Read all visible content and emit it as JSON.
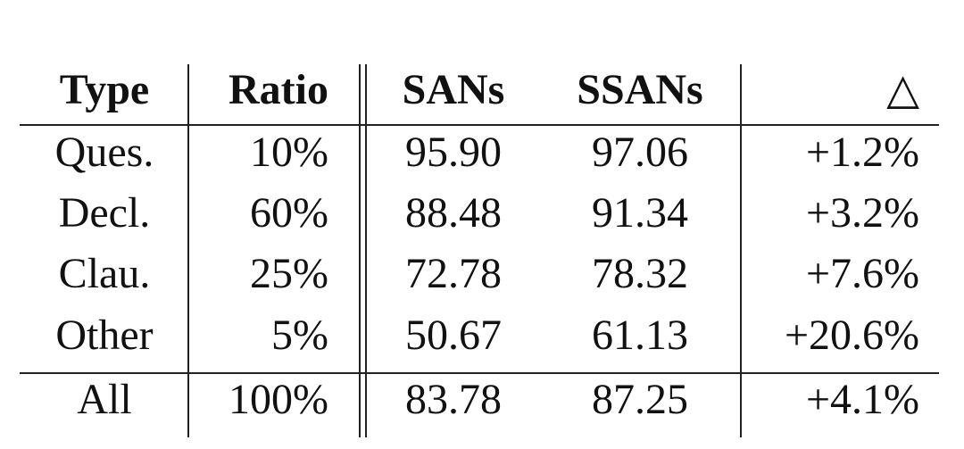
{
  "table": {
    "header": [
      "Type",
      "Ratio",
      "SANs",
      "SSANs",
      "△"
    ],
    "rows": [
      [
        "Ques.",
        "10%",
        "95.90",
        "97.06",
        "+1.2%"
      ],
      [
        "Decl.",
        "60%",
        "88.48",
        "91.34",
        "+3.2%"
      ],
      [
        "Clau.",
        "25%",
        "72.78",
        "78.32",
        "+7.6%"
      ],
      [
        "Other",
        "5%",
        "50.67",
        "61.13",
        "+20.6%"
      ],
      [
        "All",
        "100%",
        "83.78",
        "87.25",
        "+4.1%"
      ]
    ]
  }
}
